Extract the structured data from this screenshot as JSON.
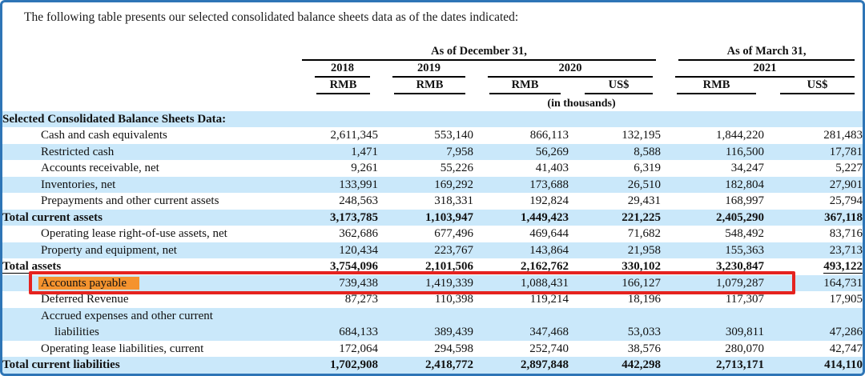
{
  "document": {
    "intro": "The following table presents our selected consolidated balance sheets data as of the dates indicated:"
  },
  "table": {
    "group_headers": [
      "As of December 31,",
      "As of March 31,"
    ],
    "years": [
      "2018",
      "2019",
      "2020",
      "2021"
    ],
    "units": [
      "RMB",
      "RMB",
      "RMB",
      "US$",
      "RMB",
      "US$"
    ],
    "units_note": "(in thousands)",
    "rows": [
      {
        "label": "Selected Consolidated Balance Sheets Data:",
        "style": "section",
        "values": [
          "",
          "",
          "",
          "",
          "",
          ""
        ]
      },
      {
        "label": "Cash and cash equivalents",
        "style": "item",
        "values": [
          "2,611,345",
          "553,140",
          "866,113",
          "132,195",
          "1,844,220",
          "281,483"
        ]
      },
      {
        "label": "Restricted cash",
        "style": "item",
        "values": [
          "1,471",
          "7,958",
          "56,269",
          "8,588",
          "116,500",
          "17,781"
        ]
      },
      {
        "label": "Accounts receivable, net",
        "style": "item",
        "values": [
          "9,261",
          "55,226",
          "41,403",
          "6,319",
          "34,247",
          "5,227"
        ]
      },
      {
        "label": "Inventories, net",
        "style": "item",
        "values": [
          "133,991",
          "169,292",
          "173,688",
          "26,510",
          "182,804",
          "27,901"
        ]
      },
      {
        "label": "Prepayments and other current assets",
        "style": "item",
        "values": [
          "248,563",
          "318,331",
          "192,824",
          "29,431",
          "168,997",
          "25,794"
        ]
      },
      {
        "label": "Total current assets",
        "style": "total",
        "values": [
          "3,173,785",
          "1,103,947",
          "1,449,423",
          "221,225",
          "2,405,290",
          "367,118"
        ]
      },
      {
        "label": "Operating lease right-of-use assets, net",
        "style": "item",
        "values": [
          "362,686",
          "677,496",
          "469,644",
          "71,682",
          "548,492",
          "83,716"
        ]
      },
      {
        "label": "Property and equipment, net",
        "style": "item",
        "values": [
          "120,434",
          "223,767",
          "143,864",
          "21,958",
          "155,363",
          "23,713"
        ]
      },
      {
        "label": "Total assets",
        "style": "total",
        "underline": true,
        "values": [
          "3,754,096",
          "2,101,506",
          "2,162,762",
          "330,102",
          "3,230,847",
          "493,122"
        ]
      },
      {
        "label": "Accounts payable",
        "style": "item",
        "highlighted": true,
        "values": [
          "739,438",
          "1,419,339",
          "1,088,431",
          "166,127",
          "1,079,287",
          "164,731"
        ]
      },
      {
        "label": "Deferred Revenue",
        "style": "item",
        "values": [
          "87,273",
          "110,398",
          "119,214",
          "18,196",
          "117,307",
          "17,905"
        ]
      },
      {
        "label": "Accrued expenses and other current",
        "label2": "liabilities",
        "style": "item",
        "values": [
          "684,133",
          "389,439",
          "347,468",
          "53,033",
          "309,811",
          "47,286"
        ]
      },
      {
        "label": "Operating lease liabilities, current",
        "style": "item",
        "values": [
          "172,064",
          "294,598",
          "252,740",
          "38,576",
          "280,070",
          "42,747"
        ]
      },
      {
        "label": "Total current liabilities",
        "style": "total",
        "values": [
          "1,702,908",
          "2,418,772",
          "2,897,848",
          "442,298",
          "2,713,171",
          "414,110"
        ]
      }
    ]
  },
  "annotations": {
    "highlighted_row_label": "Accounts payable",
    "red_box_row": "Accounts payable"
  },
  "colors": {
    "page_border": "#2E75B6",
    "row_shade": "#CAE8FA",
    "highlight_orange": "#F5932E",
    "annotation_red": "#E5231F"
  }
}
